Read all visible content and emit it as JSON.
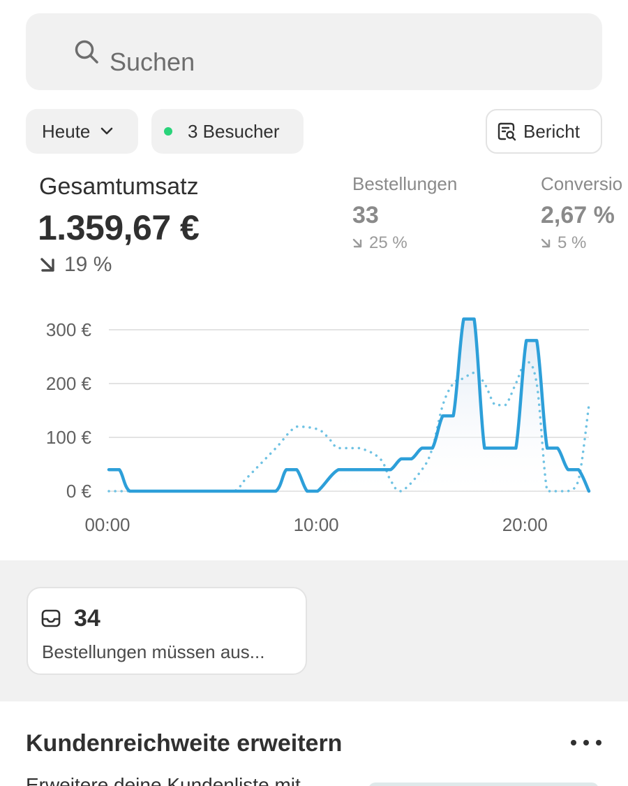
{
  "search": {
    "placeholder": "Suchen",
    "icon": "search-icon"
  },
  "filters": {
    "date_label": "Heute",
    "visitors_label": "3 Besucher",
    "visitors_dot_color": "#29d37a",
    "report_label": "Bericht"
  },
  "metrics": {
    "total_sales": {
      "label": "Gesamtumsatz",
      "value": "1.359,67 €",
      "change": "19 %",
      "direction": "down"
    },
    "orders": {
      "label": "Bestellungen",
      "value": "33",
      "change": "25 %",
      "direction": "down"
    },
    "conversion": {
      "label": "Conversio",
      "value": "2,67 %",
      "change": "5 %",
      "direction": "down"
    }
  },
  "chart_data": {
    "type": "line",
    "x_tick_labels": [
      "00:00",
      "10:00",
      "20:00"
    ],
    "y_tick_labels": [
      "0 €",
      "100 €",
      "200 €",
      "300 €"
    ],
    "ylim": [
      0,
      300
    ],
    "xlim": [
      0,
      23
    ],
    "grid": true,
    "series": [
      {
        "style": "solid",
        "color": "#2d9fd9",
        "x": [
          0,
          0.5,
          1,
          2,
          3,
          4,
          5,
          6,
          7,
          8,
          8.5,
          9,
          9.5,
          10,
          11,
          12,
          13,
          13.5,
          14,
          14.5,
          15,
          15.5,
          16,
          16.5,
          17,
          17.5,
          18,
          18.5,
          19,
          19.5,
          20,
          20.5,
          21,
          21.5,
          22,
          22.5,
          23
        ],
        "y": [
          40,
          40,
          0,
          0,
          0,
          0,
          0,
          0,
          0,
          0,
          40,
          40,
          0,
          0,
          40,
          40,
          40,
          40,
          60,
          60,
          80,
          80,
          140,
          140,
          320,
          320,
          80,
          80,
          80,
          80,
          280,
          280,
          80,
          80,
          40,
          40,
          0
        ]
      },
      {
        "style": "dotted",
        "color": "#6fc2e3",
        "x": [
          0,
          1,
          2,
          3,
          4,
          5,
          6,
          6.5,
          7,
          8,
          9,
          10,
          10.5,
          11,
          12,
          13,
          13.5,
          14,
          15,
          15.5,
          16,
          16.5,
          17,
          17.5,
          18,
          18.5,
          19,
          19.5,
          20,
          20.5,
          21,
          21.5,
          22,
          22.5,
          23
        ],
        "y": [
          0,
          0,
          0,
          0,
          0,
          0,
          0,
          20,
          40,
          80,
          120,
          115,
          100,
          80,
          80,
          60,
          20,
          0,
          40,
          80,
          160,
          200,
          210,
          220,
          200,
          160,
          160,
          200,
          240,
          200,
          0,
          0,
          0,
          20,
          160
        ]
      }
    ]
  },
  "todo": {
    "count": "34",
    "description": "Bestellungen müssen aus..."
  },
  "section": {
    "title": "Kundenreichweite erweitern",
    "body": "Erweitere deine Kundenliste mit"
  }
}
